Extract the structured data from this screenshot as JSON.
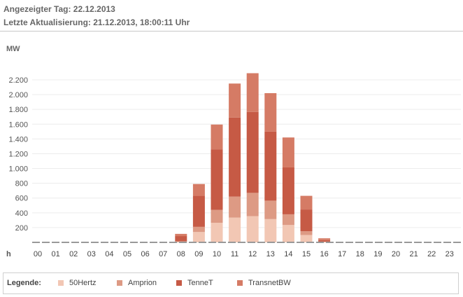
{
  "header": {
    "day_line": "Angezeigter Tag: 22.12.2013",
    "update_line": "Letzte Aktualisierung: 21.12.2013, 18:00:11 Uhr"
  },
  "legend": {
    "title": "Legende:"
  },
  "colors": {
    "50Hertz": "#f2c7b4",
    "Amprion": "#dd9a84",
    "TenneT": "#c65a45",
    "TransnetBW": "#d57b65",
    "grid": "#ececec",
    "axis": "#999999"
  },
  "chart_data": {
    "type": "bar",
    "stacked": true,
    "ylabel": "MW",
    "xlabel": "h",
    "ylim": [
      0,
      2300
    ],
    "yticks": [
      200,
      400,
      600,
      800,
      1000,
      1200,
      1400,
      1600,
      1800,
      2000,
      2200
    ],
    "ytick_labels": [
      "200",
      "400",
      "600",
      "800",
      "1.000",
      "1.200",
      "1.400",
      "1.600",
      "1.800",
      "2.000",
      "2.200"
    ],
    "grid": true,
    "legend_position": "bottom",
    "categories": [
      "00",
      "01",
      "02",
      "03",
      "04",
      "05",
      "06",
      "07",
      "08",
      "09",
      "10",
      "11",
      "12",
      "13",
      "14",
      "15",
      "16",
      "17",
      "18",
      "19",
      "20",
      "21",
      "22",
      "23"
    ],
    "series": [
      {
        "name": "50Hertz",
        "values": [
          0,
          0,
          0,
          0,
          0,
          0,
          0,
          0,
          5,
          140,
          265,
          335,
          355,
          315,
          235,
          100,
          5,
          0,
          0,
          0,
          0,
          0,
          0,
          0
        ]
      },
      {
        "name": "Amprion",
        "values": [
          0,
          0,
          0,
          0,
          0,
          0,
          0,
          0,
          10,
          70,
          175,
          285,
          315,
          250,
          145,
          50,
          5,
          0,
          0,
          0,
          0,
          0,
          0,
          0
        ]
      },
      {
        "name": "TenneT",
        "values": [
          0,
          0,
          0,
          0,
          0,
          0,
          0,
          0,
          70,
          420,
          820,
          1070,
          1095,
          935,
          635,
          295,
          20,
          0,
          0,
          0,
          0,
          0,
          0,
          0
        ]
      },
      {
        "name": "TransnetBW",
        "values": [
          0,
          0,
          0,
          0,
          0,
          0,
          0,
          0,
          30,
          160,
          335,
          460,
          525,
          520,
          405,
          185,
          25,
          0,
          0,
          0,
          0,
          0,
          0,
          0
        ]
      }
    ]
  }
}
